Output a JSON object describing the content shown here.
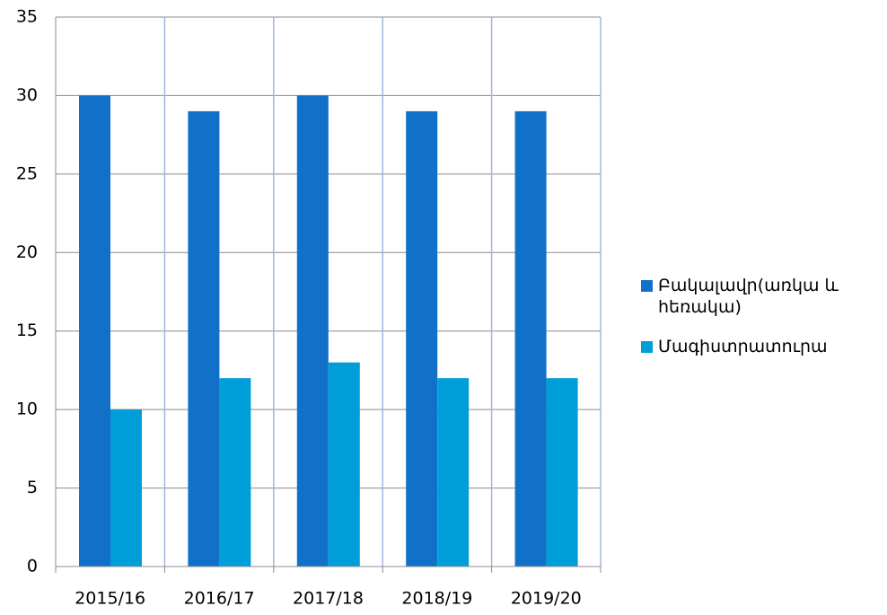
{
  "chart_data": {
    "type": "bar",
    "categories": [
      "2015/16",
      "2016/17",
      "2017/18",
      "2018/19",
      "2019/20"
    ],
    "series": [
      {
        "name": "Բակալավր(առկա և հեռակա)",
        "color": "#1170c8",
        "values": [
          30,
          29,
          30,
          29,
          29
        ]
      },
      {
        "name": "Մագիստրատուրա",
        "color": "#009ed8",
        "values": [
          10,
          12,
          13,
          12,
          12
        ]
      }
    ],
    "ylim": [
      0,
      35
    ],
    "yticks": [
      0,
      5,
      10,
      15,
      20,
      25,
      30,
      35
    ],
    "grid": true,
    "legend": "right"
  }
}
